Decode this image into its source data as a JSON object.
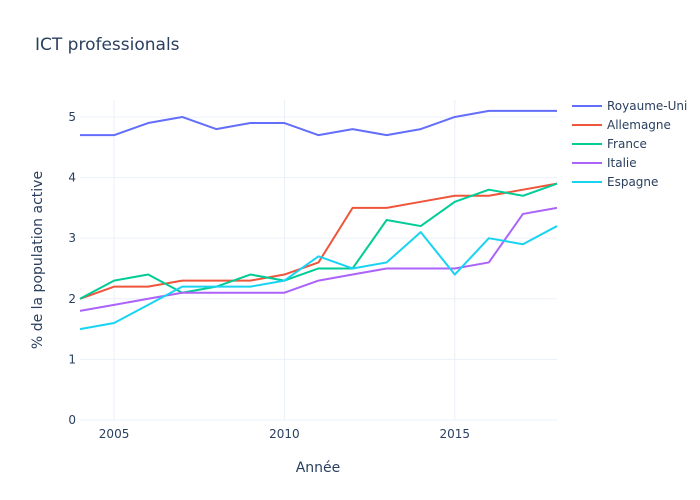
{
  "chart_data": {
    "type": "line",
    "title": "ICT professionals",
    "xlabel": "Année",
    "ylabel": "% de la population active",
    "xlim": [
      2004,
      2018
    ],
    "ylim": [
      0,
      5.28
    ],
    "xticks": [
      2005,
      2010,
      2015
    ],
    "yticks": [
      0,
      1,
      2,
      3,
      4,
      5
    ],
    "grid": true,
    "legend_position": "right",
    "x": [
      2004,
      2005,
      2006,
      2007,
      2008,
      2009,
      2010,
      2011,
      2012,
      2013,
      2014,
      2015,
      2016,
      2017,
      2018
    ],
    "series": [
      {
        "name": "Royaume-Uni",
        "color": "#636efa",
        "values": [
          4.7,
          4.7,
          4.9,
          5.0,
          4.8,
          4.9,
          4.9,
          4.7,
          4.8,
          4.7,
          4.8,
          5.0,
          5.1,
          5.1,
          5.1
        ]
      },
      {
        "name": "Allemagne",
        "color": "#ef553b",
        "values": [
          2.0,
          2.2,
          2.2,
          2.3,
          2.3,
          2.3,
          2.4,
          2.6,
          3.5,
          3.5,
          3.6,
          3.7,
          3.7,
          3.8,
          3.9
        ]
      },
      {
        "name": "France",
        "color": "#00cc96",
        "values": [
          2.0,
          2.3,
          2.4,
          2.1,
          2.2,
          2.4,
          2.3,
          2.5,
          2.5,
          3.3,
          3.2,
          3.6,
          3.8,
          3.7,
          3.9
        ]
      },
      {
        "name": "Italie",
        "color": "#ab63fa",
        "values": [
          1.8,
          1.9,
          2.0,
          2.1,
          2.1,
          2.1,
          2.1,
          2.3,
          2.4,
          2.5,
          2.5,
          2.5,
          2.6,
          3.4,
          3.5
        ]
      },
      {
        "name": "Espagne",
        "color": "#19d3f3",
        "values": [
          1.5,
          1.6,
          1.9,
          2.2,
          2.2,
          2.2,
          2.3,
          2.7,
          2.5,
          2.6,
          3.1,
          2.4,
          3.0,
          2.9,
          3.2
        ]
      }
    ]
  }
}
